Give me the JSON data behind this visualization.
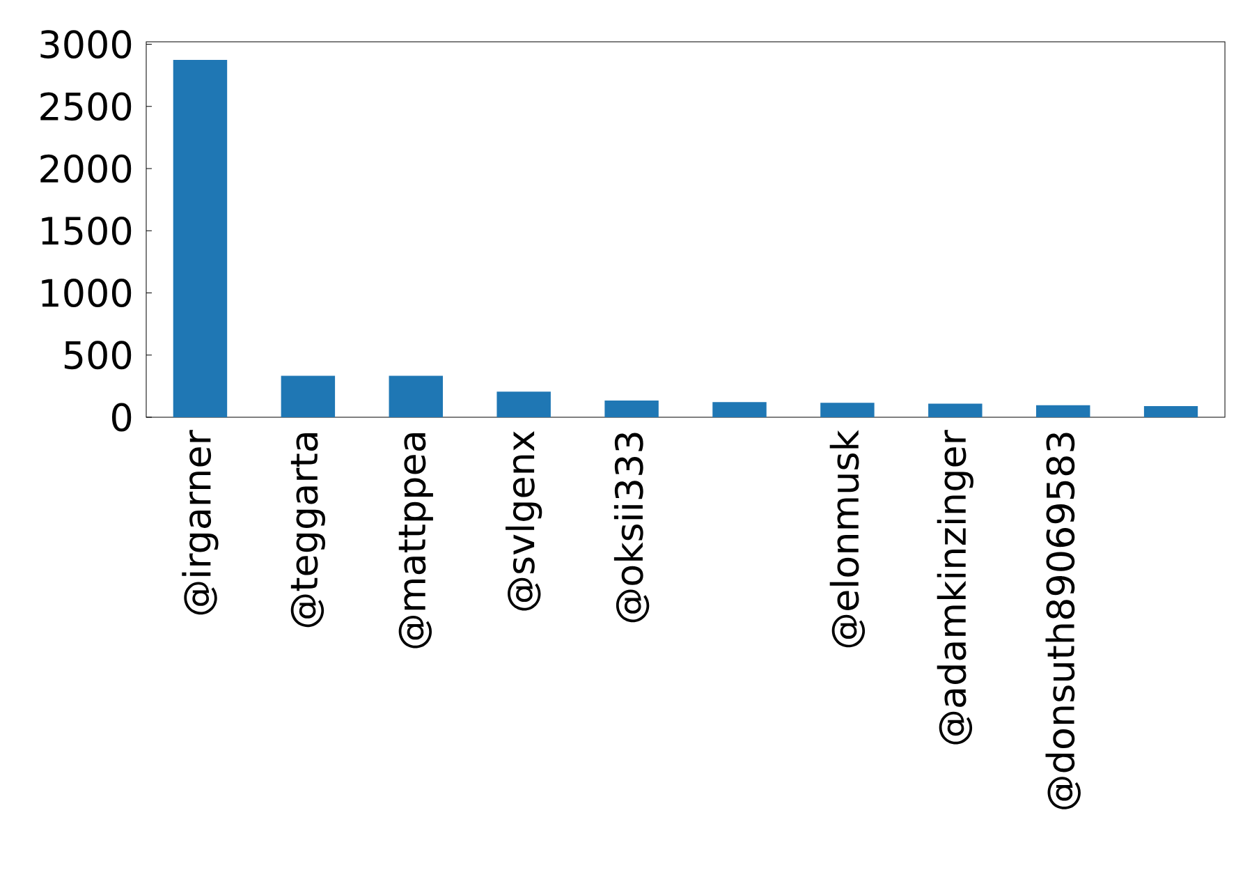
{
  "chart_data": {
    "type": "bar",
    "categories": [
      "@irgarner",
      "@teggarta",
      "@mattppea",
      "@svlgenx",
      "@oksii333",
      null,
      "@elonmusk",
      "@adamkinzinger",
      "@donsuth89069583",
      null
    ],
    "values": [
      2875,
      334,
      334,
      206,
      135,
      122,
      116,
      109,
      96,
      90
    ],
    "color": "#1f77b4",
    "ylim": [
      0,
      3020
    ],
    "yticks": [
      0,
      500,
      1000,
      1500,
      2000,
      2500,
      3000
    ]
  }
}
